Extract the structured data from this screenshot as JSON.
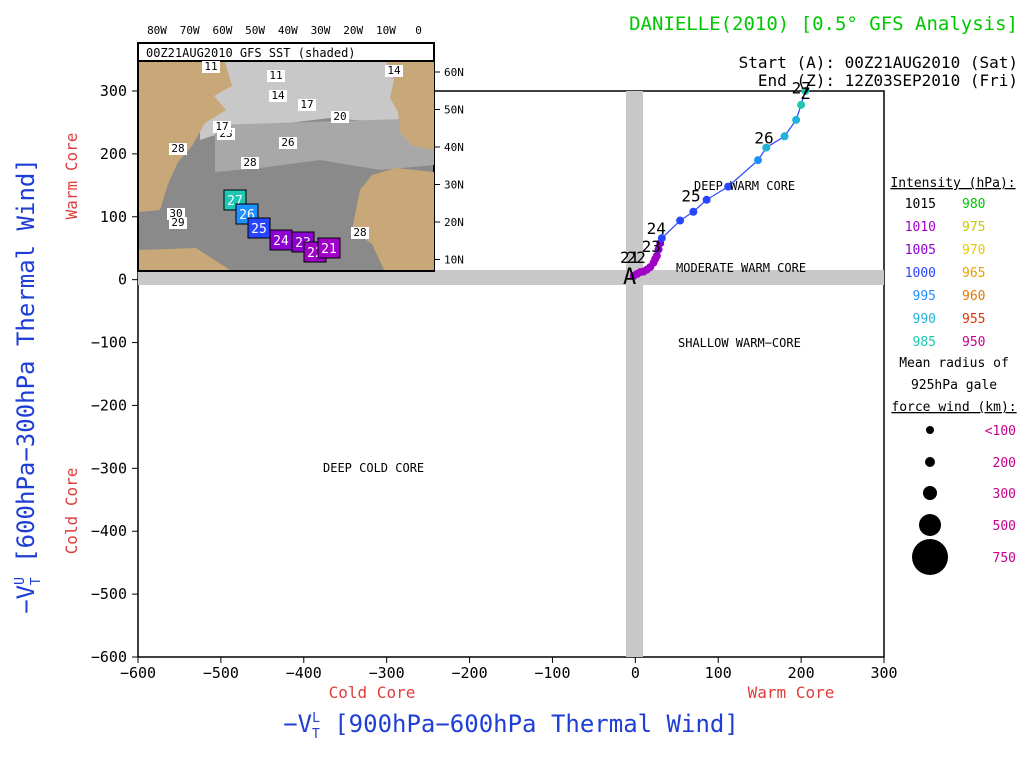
{
  "chart_data": {
    "type": "scatter",
    "title": "DANIELLE(2010) [0.5° GFS Analysis]",
    "start_label": "Start (A): 00Z21AUG2010 (Sat)",
    "end_label": "End (Z): 12Z03SEP2010 (Fri)",
    "xlabel": "−V",
    "xlabel_sup": "L",
    "xlabel_sub": "T",
    "xlabel_tail": " [900hPa−600hPa Thermal Wind]",
    "ylabel": "−V",
    "ylabel_sup": "U",
    "ylabel_sub": "T",
    "ylabel_tail": " [600hPa−300hPa Thermal Wind]",
    "xlim": [
      -600,
      300
    ],
    "ylim": [
      -600,
      300
    ],
    "xticks": [
      -600,
      -500,
      -400,
      -300,
      -200,
      -100,
      0,
      100,
      200,
      300
    ],
    "yticks": [
      -600,
      -500,
      -400,
      -300,
      -200,
      -100,
      0,
      100,
      200,
      300
    ],
    "xtick_labels": [
      "−600",
      "−500",
      "−400",
      "−300",
      "−200",
      "−100",
      "0",
      "100",
      "200",
      "300"
    ],
    "ytick_labels": [
      "−600",
      "−500",
      "−400",
      "−300",
      "−200",
      "−100",
      "0",
      "100",
      "200",
      "300"
    ],
    "axis_side_labels": {
      "x_left": "Cold Core",
      "x_right": "Warm Core",
      "y_bottom": "Cold Core",
      "y_top": "Warm Core"
    },
    "region_labels": {
      "deep_warm": "DEEP WARM CORE",
      "moderate_warm": "MODERATE WARM CORE",
      "shallow_warm": "SHALLOW WARM−CORE",
      "deep_cold": "DEEP COLD CORE"
    },
    "track": {
      "start_marker": "A",
      "end_marker": "Z",
      "points": [
        {
          "x": -2,
          "y": 6,
          "color": "#a000c8"
        },
        {
          "x": 2,
          "y": 9,
          "color": "#a000c8"
        },
        {
          "x": 6,
          "y": 12,
          "color": "#a000c8"
        },
        {
          "x": 10,
          "y": 13,
          "color": "#a000c8"
        },
        {
          "x": 14,
          "y": 16,
          "color": "#a000c8"
        },
        {
          "x": 18,
          "y": 20,
          "color": "#a000c8"
        },
        {
          "x": 22,
          "y": 27,
          "color": "#a000c8"
        },
        {
          "x": 24,
          "y": 33,
          "color": "#a000c8"
        },
        {
          "x": 26,
          "y": 38,
          "color": "#a000c8"
        },
        {
          "x": 28,
          "y": 48,
          "color": "#8c00d2"
        },
        {
          "x": 30,
          "y": 58,
          "color": "#8c00d2"
        },
        {
          "x": 32,
          "y": 66,
          "color": "#2846ff"
        },
        {
          "x": 54,
          "y": 94,
          "color": "#2846ff"
        },
        {
          "x": 70,
          "y": 108,
          "color": "#2846ff"
        },
        {
          "x": 86,
          "y": 127,
          "color": "#2846ff"
        },
        {
          "x": 112,
          "y": 148,
          "color": "#2846ff"
        },
        {
          "x": 148,
          "y": 190,
          "color": "#1e90ff"
        },
        {
          "x": 158,
          "y": 210,
          "color": "#22b4d8"
        },
        {
          "x": 180,
          "y": 228,
          "color": "#22b4d8"
        },
        {
          "x": 194,
          "y": 254,
          "color": "#22b4d8"
        },
        {
          "x": 200,
          "y": 278,
          "color": "#1ec8b4"
        },
        {
          "x": 205,
          "y": 300,
          "color": "#1ec8b4"
        }
      ],
      "day_labels": [
        {
          "text": "21",
          "x": -2,
          "y": 20
        },
        {
          "text": "22",
          "x": 6,
          "y": 20
        },
        {
          "text": "23",
          "x": 24,
          "y": 38
        },
        {
          "text": "24",
          "x": 30,
          "y": 66
        },
        {
          "text": "25",
          "x": 72,
          "y": 118
        },
        {
          "text": "26",
          "x": 160,
          "y": 210
        },
        {
          "text": "27",
          "x": 205,
          "y": 290
        }
      ]
    },
    "legend": {
      "title": "Intensity (hPa):",
      "rows": [
        {
          "left": "1015",
          "left_color": "#000000",
          "right": "980",
          "right_color": "#00c800"
        },
        {
          "left": "1010",
          "left_color": "#a000c8",
          "right": "975",
          "right_color": "#c8c800"
        },
        {
          "left": "1005",
          "left_color": "#8c00d2",
          "right": "970",
          "right_color": "#e6c800"
        },
        {
          "left": "1000",
          "left_color": "#2846ff",
          "right": "965",
          "right_color": "#e6a000"
        },
        {
          "left": "995",
          "left_color": "#1e90ff",
          "right": "960",
          "right_color": "#e67800"
        },
        {
          "left": "990",
          "left_color": "#22b4d8",
          "right": "955",
          "right_color": "#e63200"
        },
        {
          "left": "985",
          "left_color": "#1ec8b4",
          "right": "950",
          "right_color": "#c8008c"
        }
      ],
      "radius_title_1": "Mean radius of",
      "radius_title_2": "925hPa gale",
      "radius_title_3": "force wind (km):",
      "radius_rows": [
        {
          "label": "<100",
          "r": 4
        },
        {
          "label": "200",
          "r": 5
        },
        {
          "label": "300",
          "r": 7
        },
        {
          "label": "500",
          "r": 11
        },
        {
          "label": "750",
          "r": 18
        }
      ]
    },
    "inset": {
      "title": "00Z21AUG2010 GFS SST (shaded)",
      "lon_labels": [
        "80W",
        "70W",
        "60W",
        "50W",
        "40W",
        "30W",
        "20W",
        "10W",
        "0"
      ],
      "lat_labels": [
        "60N",
        "50N",
        "40N",
        "30N",
        "20N",
        "10N"
      ],
      "sst_labels": [
        "11",
        "14",
        "17",
        "20",
        "23",
        "26",
        "28",
        "28",
        "30",
        "29",
        "28",
        "14",
        "17",
        "11"
      ],
      "track_boxes": [
        {
          "text": "27",
          "color": "#1ec8b4"
        },
        {
          "text": "26",
          "color": "#1e90ff"
        },
        {
          "text": "25",
          "color": "#2846ff"
        },
        {
          "text": "24",
          "color": "#8c00d2"
        },
        {
          "text": "23",
          "color": "#8c00d2"
        },
        {
          "text": "22",
          "color": "#a000c8"
        },
        {
          "text": "21",
          "color": "#a000c8"
        }
      ]
    },
    "colors": {
      "axis_label_blue": "#1e3ed6",
      "title_green": "#00c800",
      "core_red": "#e03c3c",
      "quadrant_gray": "#c8c8c8"
    }
  }
}
